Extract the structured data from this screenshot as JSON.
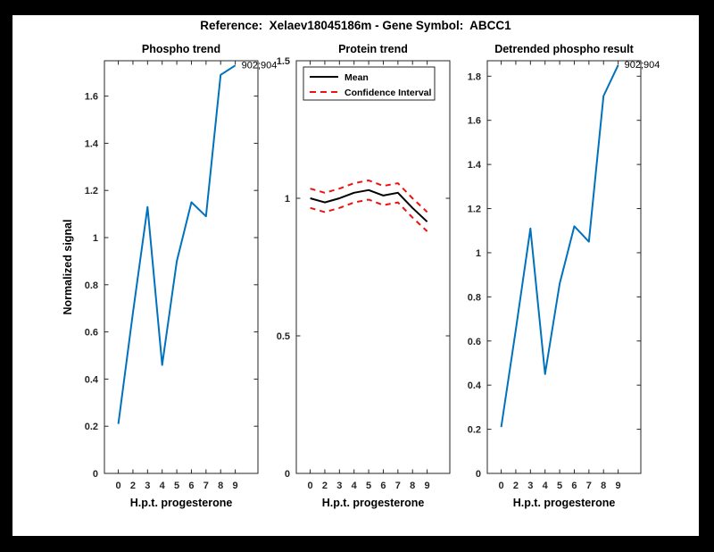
{
  "figure_title": "Reference:  Xelaev18045186m - Gene Symbol:  ABCC1",
  "colors": {
    "background_matte": "#000000",
    "figure_background": "#ffffff",
    "axis": "#262626",
    "tick_label": "#262626",
    "matlab_blue": "#0072BD",
    "matlab_red": "#ee1111",
    "mean_black": "#000000"
  },
  "chart_data": [
    {
      "type": "line",
      "title": "Phospho trend",
      "xlabel": "H.p.t. progesterone",
      "ylabel": "Normalized signal",
      "categories": [
        "0",
        "2",
        "3",
        "4",
        "5",
        "6",
        "7",
        "8",
        "9"
      ],
      "values": [
        0.21,
        0.68,
        1.13,
        0.46,
        0.9,
        1.15,
        1.09,
        1.69,
        1.73
      ],
      "annotation": "902;904",
      "ylim": [
        0,
        1.75
      ],
      "yticks": [
        0,
        0.2,
        0.4,
        0.6,
        0.8,
        1,
        1.2,
        1.4,
        1.6
      ],
      "line_color": "#0072BD",
      "grid": false,
      "box": true
    },
    {
      "type": "line",
      "title": "Protein trend",
      "xlabel": "H.p.t. progesterone",
      "ylabel": "",
      "categories": [
        "0",
        "2",
        "3",
        "4",
        "5",
        "6",
        "7",
        "8",
        "9"
      ],
      "series": [
        {
          "name": "Mean",
          "style": "solid",
          "color": "#000000",
          "values": [
            1.0,
            0.985,
            1.0,
            1.02,
            1.03,
            1.01,
            1.02,
            0.965,
            0.915
          ]
        },
        {
          "name": "Confidence Interval (upper)",
          "style": "dashed",
          "color": "#ee1111",
          "values": [
            1.035,
            1.02,
            1.035,
            1.055,
            1.065,
            1.045,
            1.055,
            1.0,
            0.95
          ]
        },
        {
          "name": "Confidence Interval (lower)",
          "style": "dashed",
          "color": "#ee1111",
          "values": [
            0.965,
            0.95,
            0.965,
            0.985,
            0.995,
            0.975,
            0.985,
            0.93,
            0.88
          ]
        }
      ],
      "legend": {
        "position": "top-left",
        "entries": [
          {
            "label": "Mean",
            "style": "solid",
            "color": "#000000"
          },
          {
            "label": "Confidence Interval",
            "style": "dashed",
            "color": "#ee1111"
          }
        ]
      },
      "ylim": [
        0,
        1.5
      ],
      "yticks": [
        0,
        0.5,
        1,
        1.5
      ],
      "grid": false,
      "box": true
    },
    {
      "type": "line",
      "title": "Detrended phospho result",
      "xlabel": "H.p.t. progesterone",
      "ylabel": "",
      "categories": [
        "0",
        "2",
        "3",
        "4",
        "5",
        "6",
        "7",
        "8",
        "9"
      ],
      "values": [
        0.21,
        0.65,
        1.11,
        0.45,
        0.86,
        1.12,
        1.05,
        1.71,
        1.85
      ],
      "annotation": "902;904",
      "ylim": [
        0,
        1.87
      ],
      "yticks": [
        0,
        0.2,
        0.4,
        0.6,
        0.8,
        1,
        1.2,
        1.4,
        1.6,
        1.8
      ],
      "line_color": "#0072BD",
      "grid": false,
      "box": true
    }
  ]
}
